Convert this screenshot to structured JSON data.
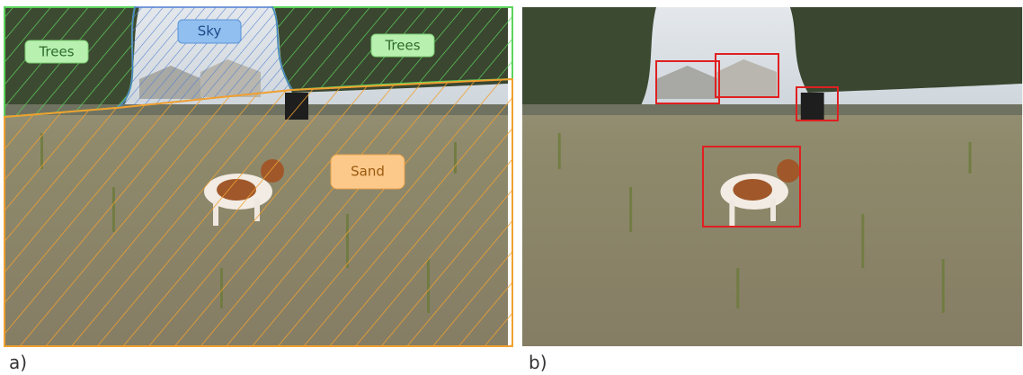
{
  "panels": [
    {
      "label": "a)",
      "regions": [
        "Trees",
        "Sky",
        "Trees",
        "Sand"
      ]
    },
    {
      "label": "b)"
    }
  ]
}
